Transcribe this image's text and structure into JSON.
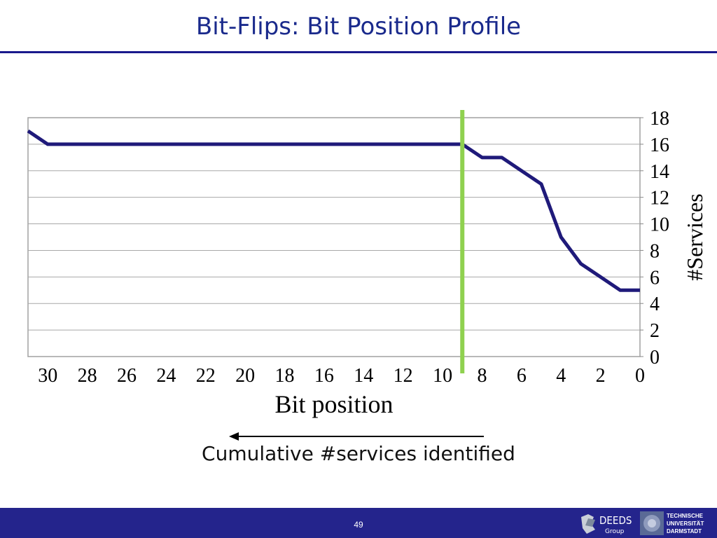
{
  "slide": {
    "title": "Bit-Flips: Bit Position Profile",
    "caption": "Cumulative #services identified",
    "page_number": "49",
    "footer_color": "#24248c"
  },
  "logos": {
    "deeds_text": "DEEDS",
    "deeds_sub": "Group",
    "tu_line1": "TECHNISCHE",
    "tu_line2": "UNIVERSITÄT",
    "tu_line3": "DARMSTADT"
  },
  "chart_data": {
    "type": "line",
    "title": "",
    "xlabel": "Bit position",
    "ylabel": "#Services",
    "x_reversed": true,
    "xlim": [
      0,
      31
    ],
    "ylim": [
      0,
      18
    ],
    "x_ticks": [
      "30",
      "28",
      "26",
      "24",
      "22",
      "20",
      "18",
      "16",
      "14",
      "12",
      "10",
      "8",
      "6",
      "4",
      "2",
      "0"
    ],
    "y_ticks": [
      "0",
      "2",
      "4",
      "6",
      "8",
      "10",
      "12",
      "14",
      "16",
      "18"
    ],
    "y_axis_side": "right",
    "grid": "horizontal",
    "series": [
      {
        "color": "#1f1a7a",
        "x": [
          31,
          30,
          29,
          28,
          27,
          26,
          25,
          24,
          23,
          22,
          21,
          20,
          19,
          18,
          17,
          16,
          15,
          14,
          13,
          12,
          11,
          10,
          9,
          8,
          7,
          6,
          5,
          4,
          3,
          2,
          1,
          0
        ],
        "values": [
          17,
          16,
          16,
          16,
          16,
          16,
          16,
          16,
          16,
          16,
          16,
          16,
          16,
          16,
          16,
          16,
          16,
          16,
          16,
          16,
          16,
          16,
          16,
          15,
          15,
          14,
          13,
          9,
          7,
          6,
          5,
          5
        ]
      }
    ],
    "marker_line": {
      "x": 9,
      "color": "#8fd14f"
    }
  }
}
